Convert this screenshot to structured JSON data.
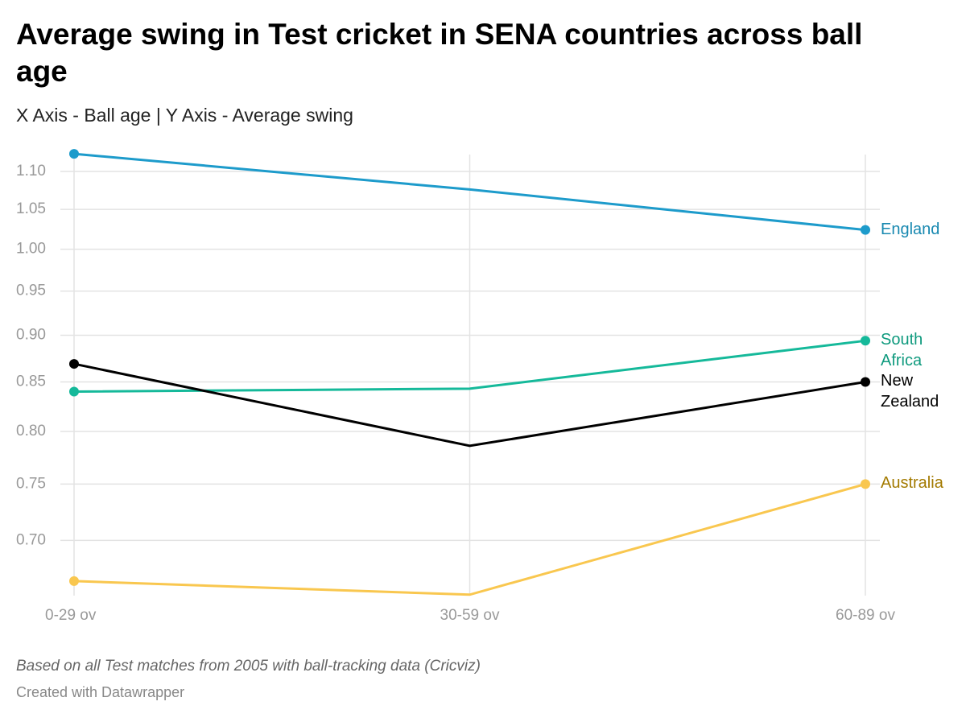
{
  "chart_data": {
    "type": "line",
    "title": "Average swing in Test cricket in SENA countries across ball age",
    "subtitle": "X Axis - Ball age | Y Axis - Average swing",
    "notes": "Based on all Test matches from 2005 with ball-tracking data (Cricviz)",
    "credit": "Created with Datawrapper",
    "categories": [
      "0-29 ov",
      "30-59 ov",
      "60-89 ov"
    ],
    "series": [
      {
        "name": "England",
        "color": "#1d9bcb",
        "label_color": "#1788b0",
        "values": [
          1.124,
          1.076,
          1.024
        ]
      },
      {
        "name": "South Africa",
        "color": "#15b99a",
        "label_color": "#0f9a7e",
        "values": [
          0.84,
          0.843,
          0.894
        ]
      },
      {
        "name": "New Zealand",
        "color": "#000000",
        "label_color": "#000000",
        "values": [
          0.869,
          0.786,
          0.85
        ]
      },
      {
        "name": "Australia",
        "color": "#f9c74f",
        "label_color": "#a37a00",
        "values": [
          0.666,
          0.655,
          0.75
        ]
      }
    ],
    "ylim": [
      0.651,
      1.142
    ],
    "log_scale": true,
    "grid": true,
    "yticks": [
      {
        "value": 0.7,
        "label": "0.70"
      },
      {
        "value": 0.75,
        "label": "0.75"
      },
      {
        "value": 0.8,
        "label": "0.80"
      },
      {
        "value": 0.85,
        "label": "0.85"
      },
      {
        "value": 0.9,
        "label": "0.90"
      },
      {
        "value": 0.95,
        "label": "0.95"
      },
      {
        "value": 1.0,
        "label": "1.00"
      },
      {
        "value": 1.05,
        "label": "1.05"
      },
      {
        "value": 1.1,
        "label": "1.10"
      }
    ]
  }
}
